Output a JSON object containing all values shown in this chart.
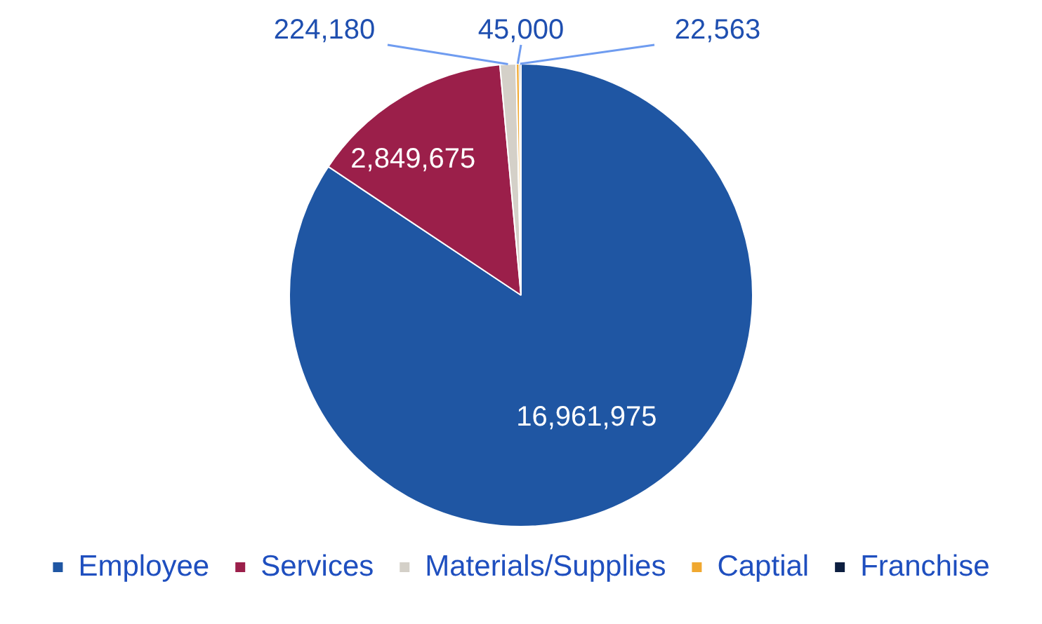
{
  "chart_data": {
    "type": "pie",
    "categories": [
      "Employee",
      "Services",
      "Materials/Supplies",
      "Captial",
      "Franchise"
    ],
    "values": [
      16961975,
      2849675,
      224180,
      45000,
      22563
    ],
    "colors": [
      "#1f56a3",
      "#9b1f4a",
      "#d4d0c8",
      "#f0a830",
      "#0d1f40"
    ],
    "value_labels": [
      "16,961,975",
      "2,849,675",
      "224,180",
      "45,000",
      "22,563"
    ],
    "legend": "bottom"
  }
}
